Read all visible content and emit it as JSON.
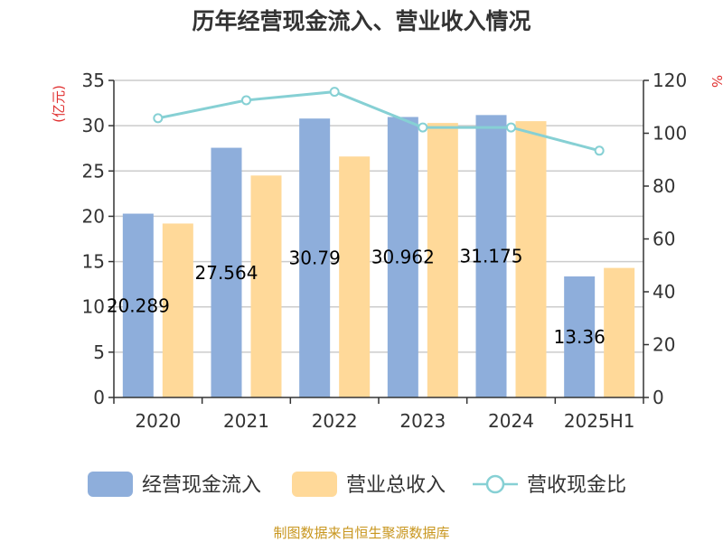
{
  "chart_data": {
    "type": "bar",
    "title": "历年经营现金流入、营业收入情况",
    "categories": [
      "2020",
      "2021",
      "2022",
      "2023",
      "2024",
      "2025H1"
    ],
    "y_left_unit": "(亿元)",
    "y_right_unit": "%",
    "y_left_ticks": [
      0,
      5,
      10,
      15,
      20,
      25,
      30,
      35
    ],
    "y_right_ticks": [
      0,
      20,
      40,
      60,
      80,
      100,
      120
    ],
    "ylim_left": [
      0,
      35
    ],
    "ylim_right": [
      0,
      120
    ],
    "grid": true,
    "legend_position": "bottom",
    "series": [
      {
        "name": "经营现金流入",
        "type": "bar",
        "axis": "left",
        "color": "#8eaedb",
        "values": [
          20.289,
          27.564,
          30.79,
          30.962,
          31.175,
          13.36
        ],
        "labels": [
          "20.289",
          "27.564",
          "30.79",
          "30.962",
          "31.175",
          "13.36"
        ]
      },
      {
        "name": "营业总收入",
        "type": "bar",
        "axis": "left",
        "color": "#ffd999",
        "values": [
          19.2,
          24.5,
          26.6,
          30.3,
          30.5,
          14.3
        ]
      },
      {
        "name": "营收现金比",
        "type": "line",
        "axis": "right",
        "color": "#86d0d4",
        "values": [
          105.7,
          112.5,
          115.7,
          102.2,
          102.2,
          93.4
        ]
      }
    ]
  },
  "source": "制图数据来自恒生聚源数据库"
}
